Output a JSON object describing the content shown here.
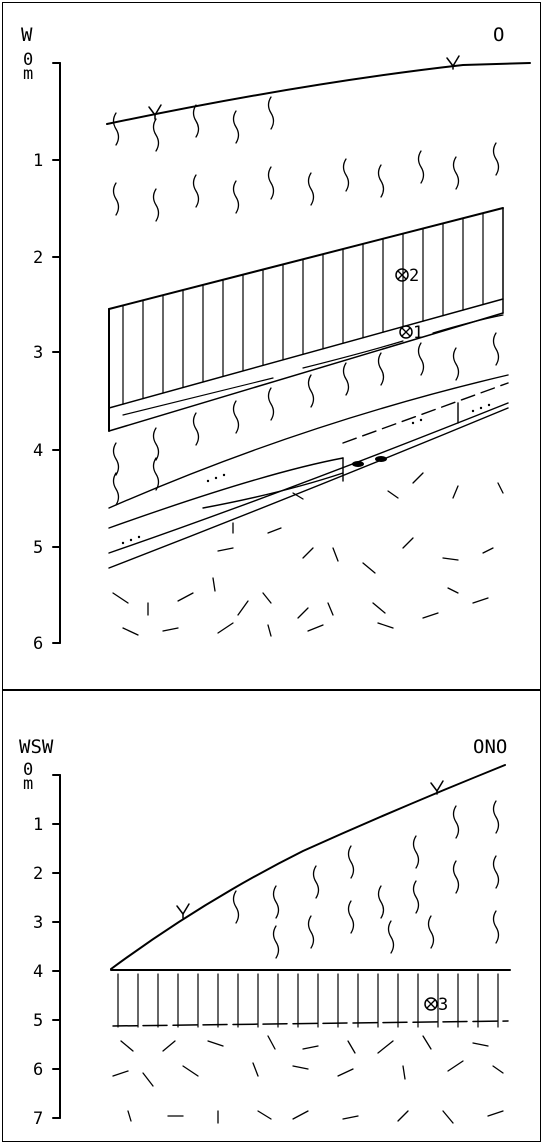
{
  "profiles": [
    {
      "id": "top",
      "direction_left": "W",
      "direction_right": "O",
      "depth_zero": "0",
      "depth_unit": "m",
      "depth_ticks": [
        "1",
        "2",
        "3",
        "4",
        "5",
        "6"
      ],
      "samples": [
        "2",
        "1"
      ]
    },
    {
      "id": "bottom",
      "direction_left": "WSW",
      "direction_right": "ONO",
      "depth_zero": "0",
      "depth_unit": "m",
      "depth_ticks": [
        "1",
        "2",
        "3",
        "4",
        "5",
        "6",
        "7"
      ],
      "samples": [
        "3"
      ]
    }
  ],
  "legend_symbols": {
    "sample_marker": "circle-cross-icon",
    "vegetation_marker": "grass-tuft-icon"
  }
}
